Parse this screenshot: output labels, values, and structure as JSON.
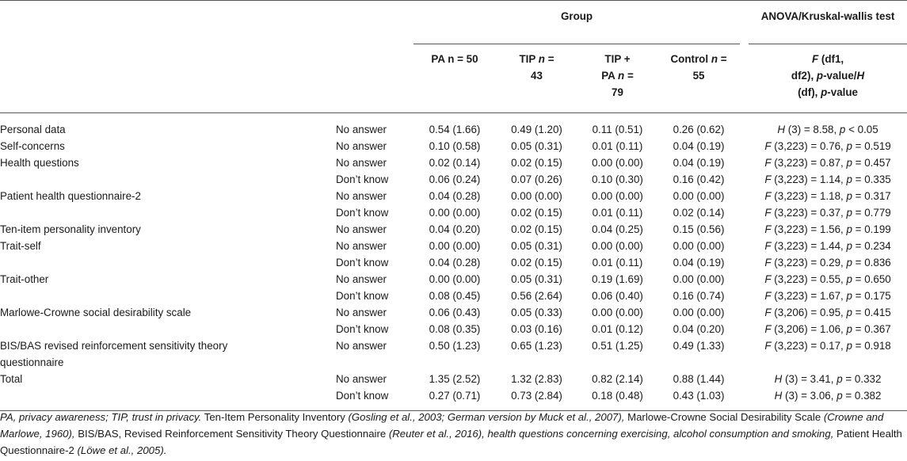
{
  "header": {
    "group_label": "Group",
    "test_label": "ANOVA/Kruskal-wallis test",
    "columns": {
      "pa": "PA n = 50",
      "tip": "TIP n = 43",
      "tippa": "TIP + PA n = 79",
      "control": "Control n = 55",
      "test": "F (df1, df2), p-value/H (df), p-value"
    }
  },
  "rows": [
    {
      "label": "Personal data",
      "resp": "No answer",
      "pa": "0.54 (1.66)",
      "tip": "0.49 (1.20)",
      "tippa": "0.11 (0.51)",
      "control": "0.26 (0.62)",
      "test": "H (3) = 8.58, p < 0.05"
    },
    {
      "label": "Self-concerns",
      "resp": "No answer",
      "pa": "0.10 (0.58)",
      "tip": "0.05 (0.31)",
      "tippa": "0.01 (0.11)",
      "control": "0.04 (0.19)",
      "test": "F (3,223) = 0.76, p = 0.519"
    },
    {
      "label": "Health questions",
      "resp": "No answer",
      "pa": "0.02 (0.14)",
      "tip": "0.02 (0.15)",
      "tippa": "0.00 (0.00)",
      "control": "0.04 (0.19)",
      "test": "F (3,223) = 0.87, p = 0.457"
    },
    {
      "label": "",
      "resp": "Don’t know",
      "pa": "0.06 (0.24)",
      "tip": "0.07 (0.26)",
      "tippa": "0.10 (0.30)",
      "control": "0.16 (0.42)",
      "test": "F (3,223) = 1.14, p = 0.335"
    },
    {
      "label": "Patient health questionnaire-2",
      "resp": "No answer",
      "pa": "0.04 (0.28)",
      "tip": "0.00 (0.00)",
      "tippa": "0.00 (0.00)",
      "control": "0.00 (0.00)",
      "test": "F (3,223) = 1.18, p = 0.317"
    },
    {
      "label": "",
      "resp": "Don’t know",
      "pa": "0.00 (0.00)",
      "tip": "0.02 (0.15)",
      "tippa": "0.01 (0.11)",
      "control": "0.02 (0.14)",
      "test": "F (3,223) = 0.37, p = 0.779"
    },
    {
      "label": "Ten-item personality inventory",
      "resp": "No answer",
      "pa": "0.04 (0.20)",
      "tip": "0.02 (0.15)",
      "tippa": "0.04 (0.25)",
      "control": "0.15 (0.56)",
      "test": "F (3,223) = 1.56, p = 0.199"
    },
    {
      "label": "Trait-self",
      "resp": "No answer",
      "pa": "0.00 (0.00)",
      "tip": "0.05 (0.31)",
      "tippa": "0.00 (0.00)",
      "control": "0.00 (0.00)",
      "test": "F (3,223) = 1.44, p = 0.234"
    },
    {
      "label": "",
      "resp": "Don’t know",
      "pa": "0.04 (0.28)",
      "tip": "0.02 (0.15)",
      "tippa": "0.01 (0.11)",
      "control": "0.04 (0.19)",
      "test": "F (3,223) = 0.29, p = 0.836"
    },
    {
      "label": "Trait-other",
      "resp": "No answer",
      "pa": "0.00 (0.00)",
      "tip": "0.05 (0.31)",
      "tippa": "0.19 (1.69)",
      "control": "0.00 (0.00)",
      "test": "F (3,223) = 0.55, p = 0.650"
    },
    {
      "label": "",
      "resp": "Don’t know",
      "pa": "0.08 (0.45)",
      "tip": "0.56 (2.64)",
      "tippa": "0.06 (0.40)",
      "control": "0.16 (0.74)",
      "test": "F (3,223) = 1.67, p = 0.175"
    },
    {
      "label": "Marlowe-Crowne social desirability scale",
      "resp": "No answer",
      "pa": "0.06 (0.43)",
      "tip": "0.05 (0.33)",
      "tippa": "0.00 (0.00)",
      "control": "0.00 (0.00)",
      "test": "F (3,206) = 0.95, p = 0.415"
    },
    {
      "label": "",
      "resp": "Don’t know",
      "pa": "0.08 (0.35)",
      "tip": "0.03 (0.16)",
      "tippa": "0.01 (0.12)",
      "control": "0.04 (0.20)",
      "test": "F (3,206) = 1.06, p = 0.367"
    },
    {
      "label": "BIS/BAS revised reinforcement sensitivity theory questionnaire",
      "resp": "No answer",
      "pa": "0.50 (1.23)",
      "tip": "0.65 (1.23)",
      "tippa": "0.51 (1.25)",
      "control": "0.49 (1.33)",
      "test": "F (3,223) = 0.17, p = 0.918"
    },
    {
      "label": "Total",
      "resp": "No answer",
      "pa": "1.35 (2.52)",
      "tip": "1.32 (2.83)",
      "tippa": "0.82 (2.14)",
      "control": "0.88 (1.44)",
      "test": "H (3) = 3.41, p = 0.332"
    },
    {
      "label": "",
      "resp": "Don’t know",
      "pa": "0.27 (0.71)",
      "tip": "0.73 (2.84)",
      "tippa": "0.18 (0.48)",
      "control": "0.43 (1.03)",
      "test": "H (3) = 3.06, p = 0.382"
    }
  ],
  "footnote": {
    "p1_italic": "PA, privacy awareness; TIP, trust in privacy.",
    "p2": " Ten-Item Personality Inventory ",
    "p3_italic": "(Gosling et al., 2003; German version by Muck et al., 2007),",
    "p4": " Marlowe-Crowne Social Desirability Scale ",
    "p5_italic": "(Crowne and Marlowe, 1960),",
    "p6": " BIS/BAS, Revised Reinforcement Sensitivity Theory Questionnaire ",
    "p7_italic": "(Reuter et al., 2016), health questions concerning exercising, alcohol consumption and smoking,",
    "p8": " Patient Health Questionnaire-2 ",
    "p9_italic": "(Löwe et al., 2005)."
  }
}
